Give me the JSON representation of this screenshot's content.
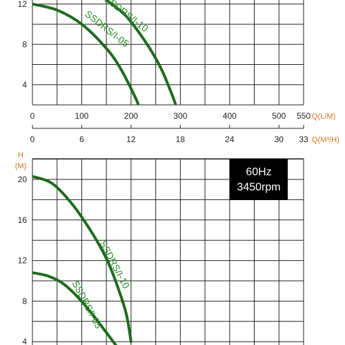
{
  "chart_data": [
    {
      "type": "line",
      "title": "",
      "xlabel": "",
      "ylabel": "",
      "x_units": [
        {
          "label": "Q(L/M)",
          "ticks": [
            "0",
            "100",
            "200",
            "300",
            "400",
            "500",
            "550"
          ]
        },
        {
          "label": "Q(M³/H)",
          "ticks": [
            "0",
            "6",
            "12",
            "18",
            "24",
            "30",
            "33"
          ]
        }
      ],
      "xlim": [
        0,
        550
      ],
      "y_ticks": [
        "4",
        "8",
        "12"
      ],
      "ylim": [
        2,
        12.4
      ],
      "grid": true,
      "series": [
        {
          "name": "SSDRS/I-05",
          "x": [
            0,
            50,
            100,
            150,
            180,
            210,
            215
          ],
          "y": [
            12,
            11.4,
            10,
            7.6,
            5.5,
            2.6,
            1.9
          ]
        },
        {
          "name": "SSDRS/I-10",
          "x": [
            150,
            190,
            230,
            260,
            280,
            290
          ],
          "y": [
            12.4,
            10.8,
            8.2,
            5.7,
            3.4,
            2.1
          ]
        }
      ]
    },
    {
      "type": "line",
      "title": "",
      "ylabel": "H",
      "yunit": "(M)",
      "xlim": [
        0,
        550
      ],
      "ylim": [
        3.5,
        22
      ],
      "y_ticks": [
        "20",
        "16",
        "12",
        "8",
        "4"
      ],
      "grid": true,
      "badge": {
        "line1": "60Hz",
        "line2": "3450rpm"
      },
      "series": [
        {
          "name": "SSDRS/I-05",
          "x": [
            0,
            30,
            60,
            90,
            120,
            150,
            170
          ],
          "y": [
            10.8,
            10.5,
            9.8,
            8.5,
            6.8,
            4.9,
            3.6
          ]
        },
        {
          "name": "SSDRS/I-10",
          "x": [
            0,
            40,
            80,
            120,
            150,
            170,
            190,
            200
          ],
          "y": [
            20.3,
            19.6,
            17.6,
            14.8,
            12.2,
            9.8,
            6.8,
            4
          ]
        }
      ]
    }
  ],
  "colors": {
    "curve": "#1e6b1e",
    "label": "#2a8a2a",
    "unit": "#d9731f",
    "grid": "#222222",
    "badge": "#000000"
  }
}
